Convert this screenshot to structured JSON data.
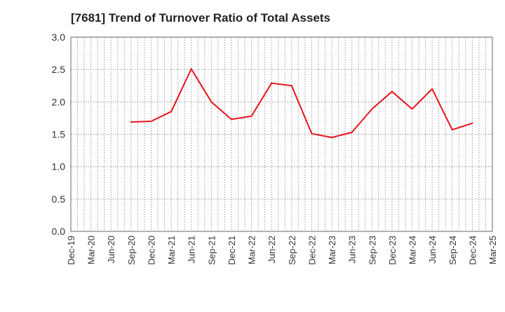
{
  "chart_data": {
    "type": "line",
    "title": "[7681]  Trend of Turnover Ratio of Total Assets",
    "xlabel": "",
    "ylabel": "",
    "ylim": [
      0,
      3.0
    ],
    "yticks": [
      "0.0",
      "0.5",
      "1.0",
      "1.5",
      "2.0",
      "2.5",
      "3.0"
    ],
    "x_tick_labels": [
      "Dec-19",
      "Mar-20",
      "Jun-20",
      "Sep-20",
      "Dec-20",
      "Mar-21",
      "Jun-21",
      "Sep-21",
      "Dec-21",
      "Mar-22",
      "Jun-22",
      "Sep-22",
      "Dec-22",
      "Mar-23",
      "Jun-23",
      "Sep-23",
      "Dec-23",
      "Mar-24",
      "Jun-24",
      "Sep-24",
      "Dec-24",
      "Mar-25"
    ],
    "grid": true,
    "series": [
      {
        "color": "#e8141c",
        "values": [
          null,
          null,
          null,
          1.69,
          1.7,
          1.85,
          2.51,
          2.0,
          1.73,
          1.78,
          2.29,
          2.25,
          1.51,
          1.45,
          1.53,
          1.89,
          2.16,
          1.89,
          2.2,
          1.57,
          1.67,
          null
        ]
      }
    ]
  }
}
